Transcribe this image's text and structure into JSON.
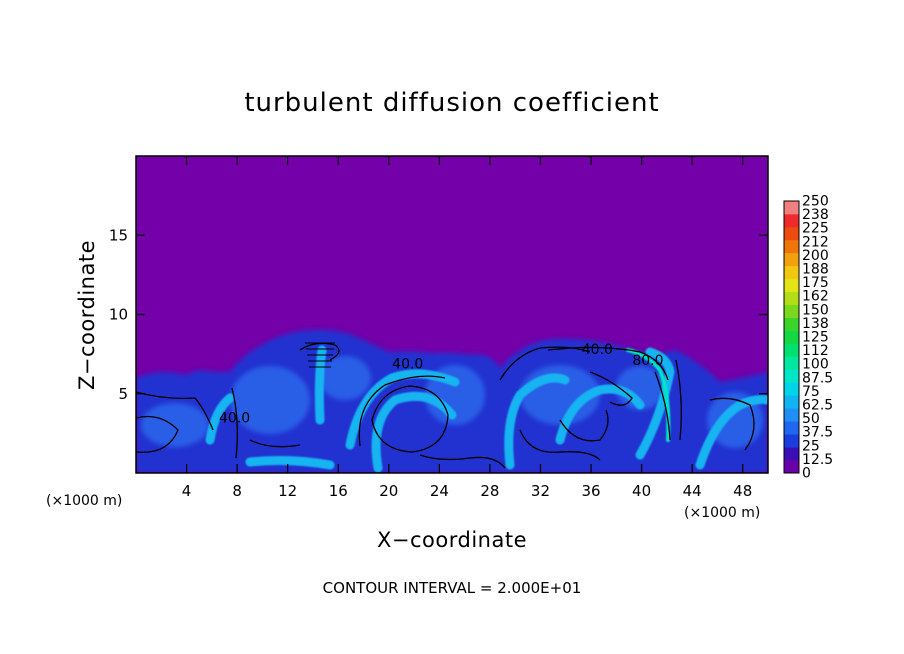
{
  "chart_data": {
    "type": "heatmap",
    "title": "turbulent diffusion coefficient",
    "xlabel": "X−coordinate",
    "ylabel": "Z−coordinate",
    "x_unit_label": "(×1000 m)",
    "z_unit_label": "(×1000 m)",
    "xlim": [
      0,
      50
    ],
    "ylim": [
      0,
      20
    ],
    "x_ticks": [
      4,
      8,
      12,
      16,
      20,
      24,
      28,
      32,
      36,
      40,
      44,
      48
    ],
    "x_tick_labels": [
      "4",
      "8",
      "12",
      "16",
      "20",
      "24",
      "28",
      "32",
      "36",
      "40",
      "44",
      "48"
    ],
    "y_ticks": [
      5,
      10,
      15
    ],
    "y_tick_labels": [
      "5",
      "10",
      "15"
    ],
    "colorbar": {
      "levels": [
        0,
        12.5,
        25,
        37.5,
        50,
        62.5,
        75,
        87.5,
        100,
        112,
        125,
        138,
        150,
        162,
        175,
        188,
        200,
        212,
        225,
        238,
        250
      ],
      "labels": [
        "0",
        "12.5",
        "25",
        "37.5",
        "50",
        "62.5",
        "75",
        "87.5",
        "100",
        "112",
        "125",
        "138",
        "150",
        "162",
        "175",
        "188",
        "200",
        "212",
        "225",
        "238",
        "250"
      ],
      "colors": [
        "#6a00a8",
        "#3a0fb5",
        "#1a3dde",
        "#1f66f0",
        "#1f8ef5",
        "#10b4f2",
        "#00d4e8",
        "#00e6c8",
        "#00e8a0",
        "#00e070",
        "#12d843",
        "#3cd42a",
        "#7ad81e",
        "#b2de18",
        "#e4e414",
        "#f0c812",
        "#f2a00e",
        "#f0760c",
        "#ec4c0e",
        "#ef2a2a",
        "#f08080"
      ]
    },
    "contour_labels": [
      {
        "text": "40.0",
        "x": 21.5,
        "z": 6.6
      },
      {
        "text": "40.0",
        "x": 36.5,
        "z": 7.5
      },
      {
        "text": "80.0",
        "x": 40.5,
        "z": 6.8
      },
      {
        "text": "40.0",
        "x": 7.8,
        "z": 3.2
      }
    ],
    "background_color": "#7300a8",
    "footer": "CONTOUR INTERVAL = 2.000E+01"
  }
}
